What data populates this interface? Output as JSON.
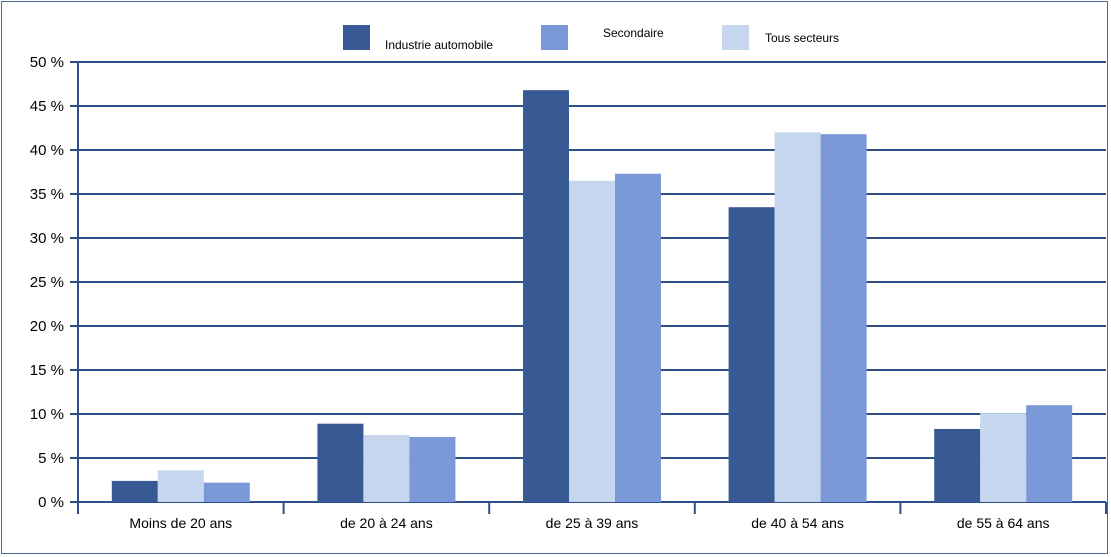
{
  "chart_data": {
    "type": "bar",
    "categories": [
      "Moins de 20 ans",
      "de 20 à 24 ans",
      "de 25 à 39 ans",
      "de 40 à 54 ans",
      "de 55 à 64 ans"
    ],
    "series": [
      {
        "name": "Industrie automobile",
        "color": "#375a94",
        "values": [
          2.4,
          8.9,
          46.8,
          33.5,
          8.3
        ]
      },
      {
        "name": "Tous secteurs",
        "color": "#c5d6ee",
        "values": [
          3.6,
          7.6,
          36.5,
          42.0,
          10.1
        ]
      },
      {
        "name": "Secondaire",
        "color": "#7b98d9",
        "values": [
          2.2,
          7.4,
          37.3,
          41.8,
          11.0
        ]
      }
    ],
    "legend_order": [
      0,
      2,
      1
    ],
    "legend_position": "top-center",
    "ylim": [
      0,
      50
    ],
    "yticks": [
      0,
      5,
      10,
      15,
      20,
      25,
      30,
      35,
      40,
      45,
      50
    ],
    "ytick_labels": [
      "0 %",
      "5 %",
      "10 %",
      "15 %",
      "20 %",
      "25 %",
      "30 %",
      "35 %",
      "40 %",
      "45 %",
      "50 %"
    ],
    "grid": true,
    "grid_color": "#2e4f8a"
  }
}
